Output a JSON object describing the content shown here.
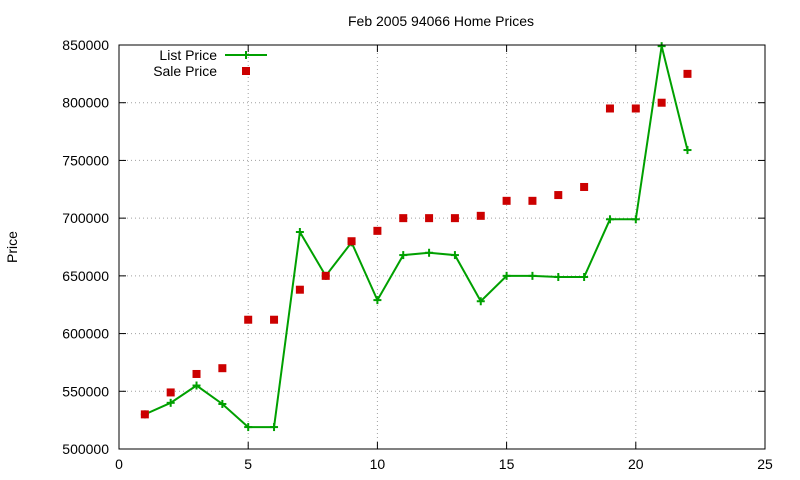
{
  "chart_data": {
    "type": "line",
    "title": "Feb 2005 94066 Home Prices",
    "xlabel": "",
    "ylabel": "Price",
    "xlim": [
      0,
      25
    ],
    "ylim": [
      500000,
      850000
    ],
    "xticks": [
      0,
      5,
      10,
      15,
      20,
      25
    ],
    "yticks": [
      500000,
      550000,
      600000,
      650000,
      700000,
      750000,
      800000,
      850000
    ],
    "grid": true,
    "legend_position": "top-left",
    "series": [
      {
        "name": "List Price",
        "kind": "line",
        "marker": "plus",
        "color": "#00a000",
        "x": [
          1,
          2,
          3,
          4,
          5,
          6,
          7,
          8,
          9,
          10,
          11,
          12,
          13,
          14,
          15,
          16,
          17,
          18,
          19,
          20,
          21,
          22
        ],
        "y": [
          530000,
          540000,
          555000,
          539000,
          519000,
          519000,
          688000,
          650000,
          679000,
          629000,
          668000,
          670000,
          668000,
          628000,
          650000,
          650000,
          649000,
          649000,
          699000,
          699000,
          849000,
          759000
        ]
      },
      {
        "name": "Sale Price",
        "kind": "points",
        "marker": "square",
        "color": "#cc0000",
        "x": [
          1,
          2,
          3,
          4,
          5,
          6,
          7,
          8,
          9,
          10,
          11,
          12,
          13,
          14,
          15,
          16,
          17,
          18,
          19,
          20,
          21,
          22
        ],
        "y": [
          530000,
          549000,
          565000,
          570000,
          612000,
          612000,
          638000,
          650000,
          680000,
          689000,
          700000,
          700000,
          700000,
          702000,
          715000,
          715000,
          720000,
          727000,
          795000,
          795000,
          800000,
          825000
        ]
      }
    ]
  }
}
